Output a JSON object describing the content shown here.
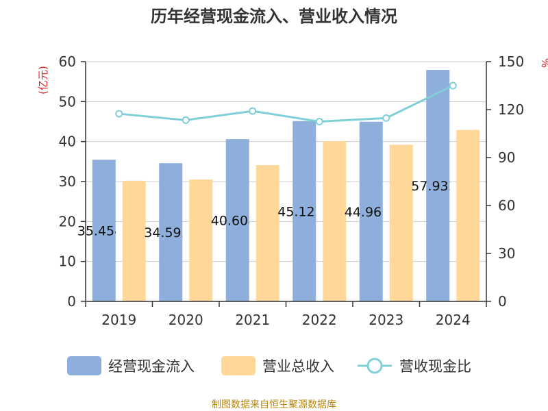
{
  "chart_data": {
    "type": "bar",
    "title": "历年经营现金流入、营业收入情况",
    "categories": [
      "2019",
      "2020",
      "2021",
      "2022",
      "2023",
      "2024"
    ],
    "series": [
      {
        "name": "经营现金流入",
        "type": "bar",
        "axis": "left",
        "color": "#8eaedb",
        "values": [
          35.454,
          34.593,
          40.608,
          45.125,
          44.961,
          57.932
        ]
      },
      {
        "name": "营业总收入",
        "type": "bar",
        "axis": "left",
        "color": "#ffd899",
        "values": [
          30.2,
          30.5,
          34.1,
          40.1,
          39.2,
          42.9
        ]
      },
      {
        "name": "营收现金比",
        "type": "line",
        "axis": "right",
        "color": "#7fd0d6",
        "values": [
          117.4,
          113.4,
          119.1,
          112.5,
          114.7,
          135.0
        ]
      }
    ],
    "data_labels": [
      "35.454",
      "34.593",
      "40.608",
      "45.125",
      "44.961",
      "57.932"
    ],
    "y_left": {
      "label": "(亿元)",
      "ylim": [
        0,
        60
      ],
      "ticks": [
        "0",
        "10",
        "20",
        "30",
        "40",
        "50",
        "60"
      ]
    },
    "y_right": {
      "label": "%",
      "ylim": [
        0,
        150
      ],
      "ticks": [
        "0",
        "30",
        "60",
        "90",
        "120",
        "150"
      ]
    },
    "grid": true,
    "legend_position": "bottom"
  },
  "source": "制图数据来自恒生聚源数据库"
}
